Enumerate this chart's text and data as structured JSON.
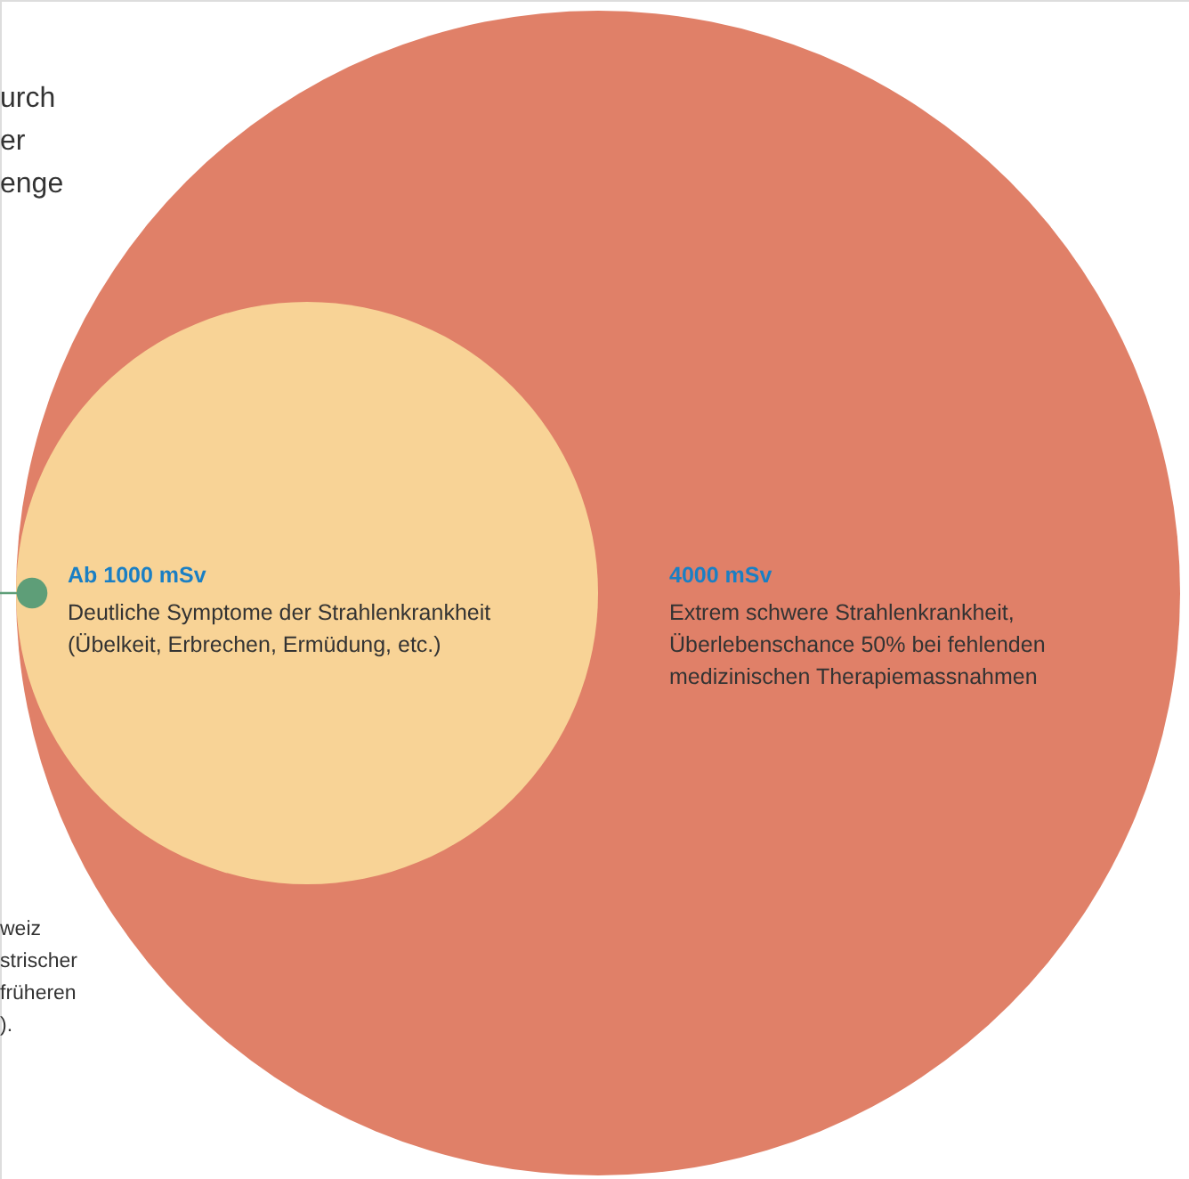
{
  "chart_data": {
    "type": "other",
    "values": [
      1000,
      4000
    ],
    "value_labels": [
      "Ab 1000 mSv",
      "4000 mSv"
    ],
    "colors": [
      "#f8d396",
      "#e08068"
    ],
    "annotations": [
      "Deutliche Symptome der Strahlenkrankheit",
      "(Übelkeit, Erbrechen, Ermüdung, etc.)",
      "Extrem schwere Strahlenkrankheit,",
      "Überlebenschance 50% bei fehlenden",
      "medizinischen Therapiemassnahmen",
      "urch",
      "er",
      "enge",
      "weiz",
      "strischer",
      "früheren",
      ")."
    ]
  }
}
